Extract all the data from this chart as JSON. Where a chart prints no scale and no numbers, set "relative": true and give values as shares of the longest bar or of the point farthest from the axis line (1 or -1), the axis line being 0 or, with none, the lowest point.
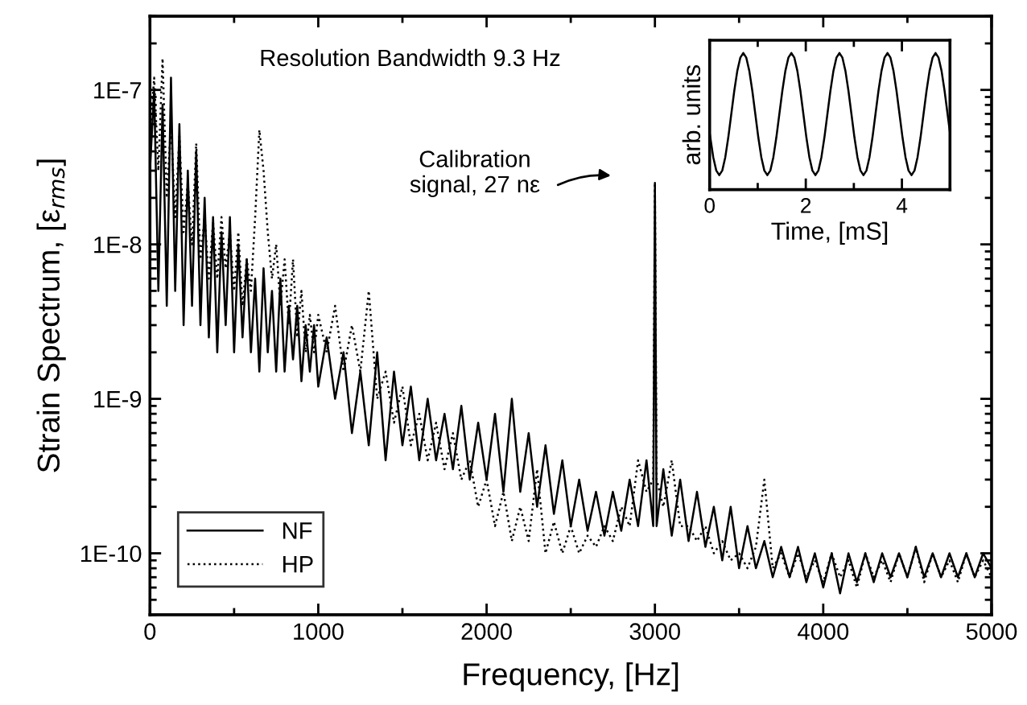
{
  "chart_data": [
    {
      "type": "line",
      "xlabel": "Frequency, [Hz]",
      "ylabel": "Strain Spectrum, [ε$_{rms}$]",
      "log": "y",
      "xlim": [
        0,
        5000
      ],
      "ylim": [
        4e-11,
        3e-07
      ],
      "xticks": [
        0,
        {
          "value": 500,
          "label": null
        },
        1000,
        {
          "value": 1500,
          "label": null
        },
        2000,
        {
          "value": 2500,
          "label": null
        },
        3000,
        {
          "value": 3500,
          "label": null
        },
        4000,
        {
          "value": 4500,
          "label": null
        },
        5000
      ],
      "yticks": [
        {
          "value": 1e-10,
          "label": "1E-10"
        },
        {
          "value": 1e-09,
          "label": "1E-9"
        },
        {
          "value": 1e-08,
          "label": "1E-8"
        },
        {
          "value": 1e-07,
          "label": "1E-7"
        }
      ],
      "legend": "bottom left",
      "annotations": [
        "Resolution Bandwidth 9.3 Hz",
        "Calibration\nsignal, 27 nε"
      ],
      "x": [
        0,
        25,
        50,
        75,
        100,
        125,
        150,
        175,
        200,
        225,
        250,
        275,
        300,
        325,
        350,
        375,
        400,
        425,
        450,
        475,
        500,
        525,
        550,
        575,
        600,
        625,
        650,
        675,
        700,
        725,
        750,
        775,
        800,
        825,
        850,
        875,
        900,
        925,
        950,
        975,
        1000,
        1050,
        1100,
        1150,
        1200,
        1250,
        1300,
        1350,
        1400,
        1450,
        1500,
        1550,
        1600,
        1650,
        1700,
        1750,
        1800,
        1850,
        1900,
        1950,
        2000,
        2050,
        2100,
        2150,
        2200,
        2250,
        2300,
        2350,
        2400,
        2450,
        2500,
        2550,
        2600,
        2650,
        2700,
        2750,
        2800,
        2850,
        2900,
        2950,
        2990,
        3000,
        3010,
        3050,
        3100,
        3150,
        3200,
        3250,
        3300,
        3350,
        3400,
        3450,
        3500,
        3550,
        3600,
        3650,
        3700,
        3750,
        3800,
        3850,
        3900,
        3950,
        4000,
        4050,
        4100,
        4150,
        4200,
        4250,
        4300,
        4350,
        4400,
        4450,
        4500,
        4550,
        4600,
        4650,
        4700,
        4750,
        4800,
        4850,
        4900,
        4950,
        5000
      ],
      "series": [
        {
          "name": "NF",
          "color": "#000000",
          "line_style": "solid",
          "values": [
            3e-08,
            1e-07,
            5e-09,
            8e-08,
            4e-09,
            1.2e-07,
            5e-09,
            6e-08,
            3e-09,
            3e-08,
            4e-09,
            4e-08,
            3e-09,
            2e-08,
            2.5e-09,
            1.5e-08,
            2e-09,
            1.2e-08,
            3e-09,
            1.5e-08,
            2e-09,
            1e-08,
            2.5e-09,
            8e-09,
            2e-09,
            6e-09,
            1.5e-09,
            7e-09,
            2e-09,
            5e-09,
            1.5e-09,
            6e-09,
            1.5e-09,
            4e-09,
            1.8e-09,
            4e-09,
            1.3e-09,
            3e-09,
            1.5e-09,
            3e-09,
            1.2e-09,
            2.5e-09,
            1e-09,
            2e-09,
            6e-10,
            1.5e-09,
            5e-10,
            2e-09,
            4e-10,
            1.5e-09,
            5e-10,
            1.2e-09,
            4e-10,
            1e-09,
            4e-10,
            8e-10,
            3.5e-10,
            9e-10,
            3e-10,
            7e-10,
            3e-10,
            8e-10,
            2.5e-10,
            1e-09,
            2.5e-10,
            6e-10,
            2e-10,
            5e-10,
            1.8e-10,
            4e-10,
            1.5e-10,
            3e-10,
            1.4e-10,
            2.5e-10,
            1.3e-10,
            2.5e-10,
            1.4e-10,
            3e-10,
            1.5e-10,
            4e-10,
            1.5e-10,
            2.5e-08,
            1.5e-10,
            3.5e-10,
            1.3e-10,
            3e-10,
            1.2e-10,
            2.5e-10,
            1.1e-10,
            2e-10,
            9e-11,
            2e-10,
            8e-11,
            1.5e-10,
            8e-11,
            1.2e-10,
            7e-11,
            1.1e-10,
            7e-11,
            1.1e-10,
            6.5e-11,
            1e-10,
            6e-11,
            1e-10,
            5.5e-11,
            1e-10,
            6.5e-11,
            1e-10,
            6.5e-11,
            1e-10,
            7e-11,
            1e-10,
            7e-11,
            1.1e-10,
            7e-11,
            1e-10,
            7e-11,
            1e-10,
            7e-11,
            1e-10,
            7e-11,
            1e-10,
            8e-11
          ]
        },
        {
          "name": "HP",
          "color": "#000000",
          "line_style": "dotted",
          "values": [
            5e-08,
            1.2e-07,
            3e-08,
            1.6e-07,
            2e-08,
            6e-08,
            1.5e-08,
            5e-08,
            1.2e-08,
            2.5e-08,
            1e-08,
            4.5e-08,
            8e-09,
            1.5e-08,
            6e-09,
            1.4e-08,
            6e-09,
            1.5e-08,
            7e-09,
            1.2e-08,
            5e-09,
            1.2e-08,
            4e-09,
            8e-09,
            5e-09,
            1.5e-08,
            5.5e-08,
            3e-08,
            1.2e-08,
            6e-09,
            1e-08,
            4e-09,
            8e-09,
            3e-09,
            8e-09,
            2.5e-09,
            5e-09,
            2e-09,
            3.5e-09,
            2e-09,
            3.5e-09,
            2e-09,
            4e-09,
            1.5e-09,
            3e-09,
            1.5e-09,
            5e-09,
            1e-09,
            1.5e-09,
            7e-10,
            1.2e-09,
            5e-10,
            8e-10,
            4e-10,
            7e-10,
            3.5e-10,
            6e-10,
            3e-10,
            4e-10,
            2e-10,
            3e-10,
            1.5e-10,
            2.5e-10,
            1.2e-10,
            2e-10,
            1.2e-10,
            3.5e-10,
            1e-10,
            1.6e-10,
            1e-10,
            1.5e-10,
            1e-10,
            1.3e-10,
            1.1e-10,
            1.5e-10,
            1.2e-10,
            2e-10,
            1.5e-10,
            4e-10,
            2.5e-10,
            3e-10,
            2.5e-08,
            3e-10,
            2e-10,
            4e-10,
            1.5e-10,
            1.5e-10,
            1.2e-10,
            1.5e-10,
            1e-10,
            1.2e-10,
            9e-11,
            1e-10,
            8e-11,
            1.1e-10,
            3e-10,
            8e-11,
            1e-10,
            7e-11,
            1e-10,
            7e-11,
            9e-11,
            6.5e-11,
            1e-10,
            7e-11,
            9e-11,
            6e-11,
            1e-10,
            7e-11,
            9e-11,
            6.5e-11,
            1e-10,
            7e-11,
            1.1e-10,
            6.5e-11,
            1e-10,
            7e-11,
            9e-11,
            6.5e-11,
            1e-10,
            7e-11,
            9e-11,
            7e-11
          ]
        }
      ]
    },
    {
      "type": "line",
      "xlabel": "Time, [mS]",
      "ylabel": "arb. units",
      "relative": true,
      "xlim": [
        0,
        5
      ],
      "xticks": [
        0,
        {
          "value": 1,
          "label": null
        },
        2,
        {
          "value": 3,
          "label": null
        },
        4,
        {
          "value": 5,
          "label": null
        }
      ],
      "x": [
        0,
        0.075,
        0.1375,
        0.2,
        0.2625,
        0.325,
        0.3875,
        0.45,
        0.5125,
        0.575,
        0.6375,
        0.7,
        0.7625,
        0.825,
        0.8875,
        0.95,
        1.0125,
        1.075,
        1.1375,
        1.2,
        1.2625,
        1.325,
        1.3875,
        1.45,
        1.5125,
        1.575,
        1.6375,
        1.7,
        1.7625,
        1.825,
        1.8875,
        1.95,
        2.0125,
        2.075,
        2.1375,
        2.2,
        2.2625,
        2.325,
        2.3875,
        2.45,
        2.5125,
        2.575,
        2.6375,
        2.7,
        2.7625,
        2.825,
        2.8875,
        2.95,
        3.0125,
        3.075,
        3.1375,
        3.2,
        3.2625,
        3.325,
        3.3875,
        3.45,
        3.5125,
        3.575,
        3.6375,
        3.7,
        3.7625,
        3.825,
        3.8875,
        3.95,
        4.0125,
        4.075,
        4.1375,
        4.2,
        4.2625,
        4.325,
        4.3875,
        4.45,
        4.5125,
        4.575,
        4.6375,
        4.7,
        4.7625,
        4.825,
        4.8875,
        4.95,
        5.0
      ],
      "series": [
        {
          "color": "#000000",
          "values": [
            0.415,
            0.237,
            0.14,
            0.106,
            0.14,
            0.237,
            0.382,
            0.553,
            0.724,
            0.869,
            0.966,
            1.0,
            0.966,
            0.869,
            0.724,
            0.553,
            0.382,
            0.237,
            0.14,
            0.106,
            0.14,
            0.237,
            0.382,
            0.553,
            0.724,
            0.869,
            0.966,
            1.0,
            0.966,
            0.869,
            0.724,
            0.553,
            0.382,
            0.237,
            0.14,
            0.106,
            0.14,
            0.237,
            0.382,
            0.553,
            0.724,
            0.869,
            0.966,
            1.0,
            0.966,
            0.869,
            0.724,
            0.553,
            0.382,
            0.237,
            0.14,
            0.106,
            0.14,
            0.237,
            0.382,
            0.553,
            0.724,
            0.869,
            0.966,
            1.0,
            0.966,
            0.869,
            0.724,
            0.553,
            0.382,
            0.237,
            0.14,
            0.106,
            0.14,
            0.237,
            0.382,
            0.553,
            0.724,
            0.869,
            0.966,
            1.0,
            0.966,
            0.869,
            0.724,
            0.553,
            0.415
          ]
        }
      ]
    }
  ]
}
